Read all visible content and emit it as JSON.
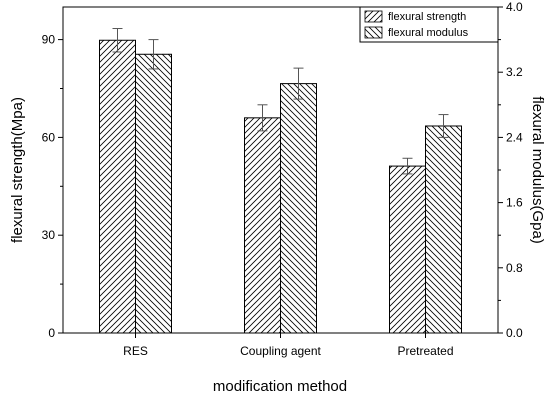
{
  "chart_data": {
    "type": "bar",
    "categories": [
      "RES",
      "Coupling agent",
      "Pretreated"
    ],
    "xlabel": "modification method",
    "ylabel_left": "flexural strength(Mpa)",
    "ylabel_right": "flexural modulus(Gpa)",
    "ylim_left": [
      0,
      100
    ],
    "ylim_right": [
      0,
      4.0
    ],
    "yticks_left": [
      0,
      30,
      60,
      90
    ],
    "yticks_left_labels": [
      "0",
      "30",
      "60",
      "90"
    ],
    "yticks_right": [
      0,
      0.8,
      1.6,
      2.4,
      3.2,
      4.0
    ],
    "yticks_right_labels": [
      "0.0",
      "0.8",
      "1.6",
      "2.4",
      "3.2",
      "4.0"
    ],
    "grid": false,
    "legend_position": "top-right",
    "series": [
      {
        "name": "flexural strength",
        "axis": "left",
        "hatch": "forward-diagonal",
        "values": [
          89.8,
          66.0,
          51.2
        ],
        "errors": [
          3.6,
          4.0,
          2.4
        ]
      },
      {
        "name": "flexural modulus",
        "axis": "right",
        "hatch": "back-diagonal",
        "values": [
          3.42,
          3.06,
          2.54
        ],
        "errors": [
          0.18,
          0.19,
          0.14
        ]
      }
    ]
  }
}
